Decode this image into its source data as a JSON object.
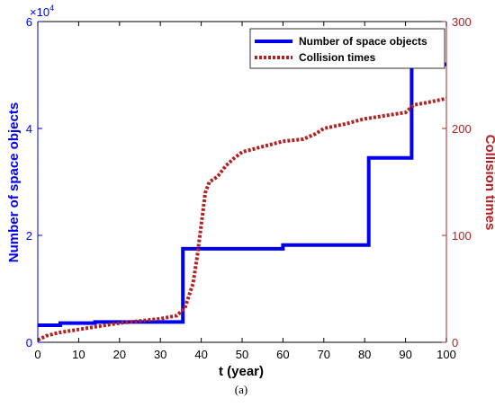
{
  "chart_data": {
    "type": "line",
    "caption": "(a)",
    "xlabel": "t (year)",
    "xlim": [
      0,
      100
    ],
    "xticks": [
      "0",
      "10",
      "20",
      "30",
      "40",
      "50",
      "60",
      "70",
      "80",
      "90",
      "100"
    ],
    "left_axis": {
      "label": "Number of space objects",
      "multiplier_base": "×10",
      "multiplier_exp": "4",
      "ylim": [
        0,
        60000
      ],
      "ticks": [
        "0",
        "2",
        "4",
        "6"
      ],
      "color": "#0000ee"
    },
    "right_axis": {
      "label": "Collision times",
      "ylim": [
        0,
        300
      ],
      "ticks": [
        "0",
        "100",
        "200",
        "300"
      ],
      "color": "#b22222"
    },
    "legend_position": "top-right",
    "series": [
      {
        "name": "Number of space objects",
        "axis": "left",
        "style": "solid",
        "color": "#0000ee",
        "x": [
          0,
          5.5,
          5.5,
          14,
          14,
          35.5,
          35.5,
          60,
          60,
          81,
          81,
          91.5,
          91.5,
          100
        ],
        "y": [
          3200,
          3200,
          3600,
          3600,
          3800,
          3800,
          17500,
          17500,
          18200,
          18200,
          34500,
          34500,
          52000,
          52000
        ]
      },
      {
        "name": "Collision times",
        "axis": "right",
        "style": "dotted",
        "color": "#b22222",
        "x": [
          0,
          2,
          5,
          10,
          15,
          20,
          25,
          30,
          34,
          36,
          38,
          39,
          40,
          41,
          42,
          44,
          46,
          48,
          50,
          55,
          60,
          65,
          68,
          70,
          75,
          80,
          85,
          90,
          92,
          95,
          100
        ],
        "y": [
          2,
          6,
          9,
          12,
          15,
          18,
          20,
          22,
          25,
          32,
          55,
          80,
          110,
          140,
          150,
          155,
          165,
          172,
          178,
          183,
          188,
          190,
          195,
          200,
          204,
          209,
          212,
          215,
          222,
          224,
          228
        ]
      }
    ]
  }
}
